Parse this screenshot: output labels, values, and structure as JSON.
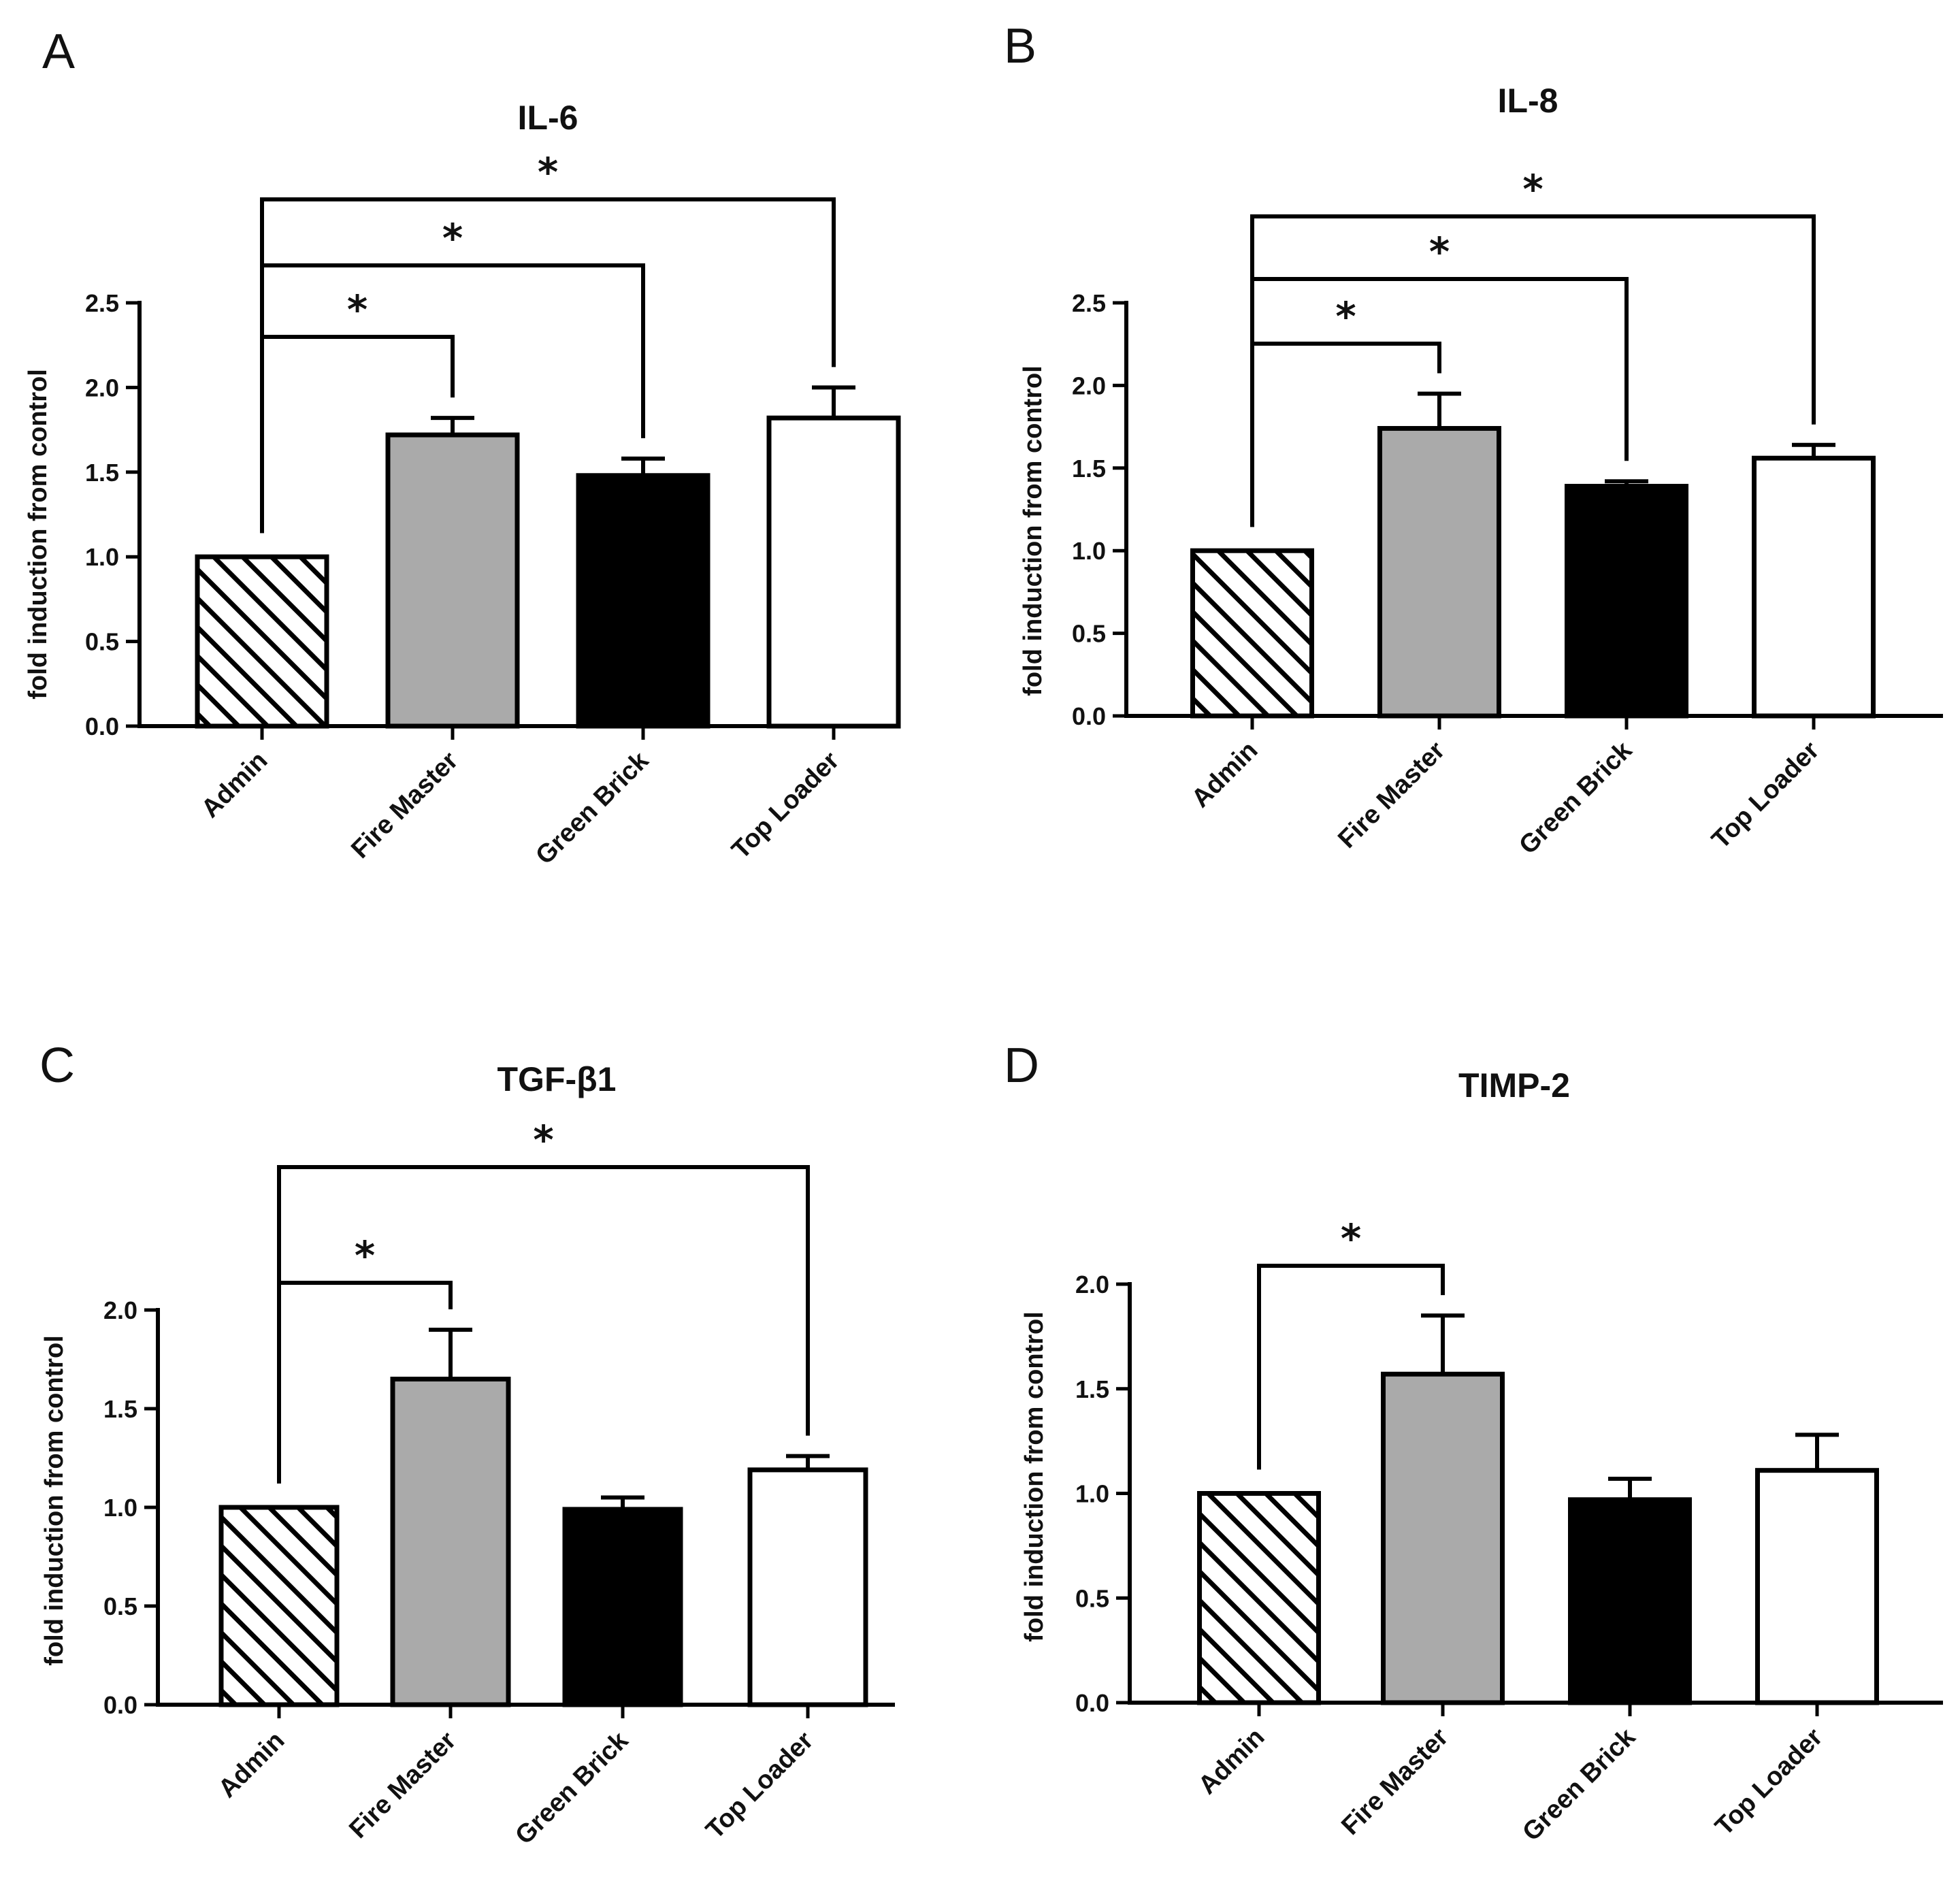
{
  "chart_data": [
    {
      "panel": "A",
      "type": "bar",
      "title": "IL-6",
      "ylabel": "fold induction from control",
      "xlabel": "",
      "categories": [
        "Admin",
        "Fire Master",
        "Green Brick",
        "Top Loader"
      ],
      "values": [
        1.0,
        1.72,
        1.48,
        1.82
      ],
      "errors": [
        0.0,
        0.1,
        0.1,
        0.18
      ],
      "ylim": [
        0,
        2.5
      ],
      "yticks": [
        "0.0",
        "0.5",
        "1.0",
        "1.5",
        "2.0",
        "2.5"
      ],
      "fills": [
        "hatch",
        "#aaaaaa",
        "#000000",
        "#ffffff"
      ],
      "significance": [
        {
          "from": 0,
          "to": 1,
          "label": "*"
        },
        {
          "from": 0,
          "to": 2,
          "label": "*"
        },
        {
          "from": 0,
          "to": 3,
          "label": "*"
        }
      ]
    },
    {
      "panel": "B",
      "type": "bar",
      "title": "IL-8",
      "ylabel": "fold induction from control",
      "xlabel": "",
      "categories": [
        "Admin",
        "Fire Master",
        "Green Brick",
        "Top Loader"
      ],
      "values": [
        1.0,
        1.74,
        1.39,
        1.56
      ],
      "errors": [
        0.0,
        0.21,
        0.03,
        0.08
      ],
      "ylim": [
        0,
        2.5
      ],
      "yticks": [
        "0.0",
        "0.5",
        "1.0",
        "1.5",
        "2.0",
        "2.5"
      ],
      "fills": [
        "hatch",
        "#aaaaaa",
        "#000000",
        "#ffffff"
      ],
      "significance": [
        {
          "from": 0,
          "to": 1,
          "label": "*"
        },
        {
          "from": 0,
          "to": 2,
          "label": "*"
        },
        {
          "from": 0,
          "to": 3,
          "label": "*"
        }
      ]
    },
    {
      "panel": "C",
      "type": "bar",
      "title": "TGF-β1",
      "ylabel": "fold induction from control",
      "xlabel": "",
      "categories": [
        "Admin",
        "Fire Master",
        "Green Brick",
        "Top Loader"
      ],
      "values": [
        1.0,
        1.65,
        0.99,
        1.19
      ],
      "errors": [
        0.0,
        0.25,
        0.06,
        0.07
      ],
      "ylim": [
        0,
        2.0
      ],
      "yticks": [
        "0.0",
        "0.5",
        "1.0",
        "1.5",
        "2.0"
      ],
      "fills": [
        "hatch",
        "#aaaaaa",
        "#000000",
        "#ffffff"
      ],
      "significance": [
        {
          "from": 0,
          "to": 1,
          "label": "*"
        },
        {
          "from": 0,
          "to": 3,
          "label": "*"
        }
      ]
    },
    {
      "panel": "D",
      "type": "bar",
      "title": "TIMP-2",
      "ylabel": "fold induction from control",
      "xlabel": "",
      "categories": [
        "Admin",
        "Fire Master",
        "Green Brick",
        "Top Loader"
      ],
      "values": [
        1.0,
        1.57,
        0.97,
        1.11
      ],
      "errors": [
        0.0,
        0.28,
        0.1,
        0.17
      ],
      "ylim": [
        0,
        2.0
      ],
      "yticks": [
        "0.0",
        "0.5",
        "1.0",
        "1.5",
        "2.0"
      ],
      "fills": [
        "hatch",
        "#aaaaaa",
        "#000000",
        "#ffffff"
      ],
      "significance": [
        {
          "from": 0,
          "to": 1,
          "label": "*"
        }
      ]
    }
  ]
}
